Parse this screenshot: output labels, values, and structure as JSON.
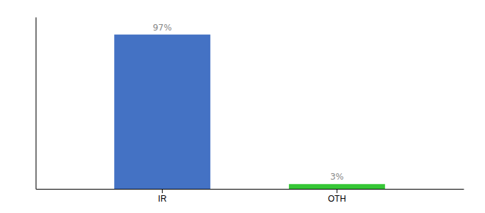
{
  "chart_data": {
    "type": "bar",
    "categories": [
      "IR",
      "OTH"
    ],
    "values": [
      97,
      3
    ],
    "value_labels": [
      "97%",
      "3%"
    ],
    "colors": [
      "#4472c4",
      "#36c736"
    ],
    "ylim": [
      0,
      108
    ],
    "data_labels": true,
    "tick_labels": "x",
    "grid": false
  }
}
